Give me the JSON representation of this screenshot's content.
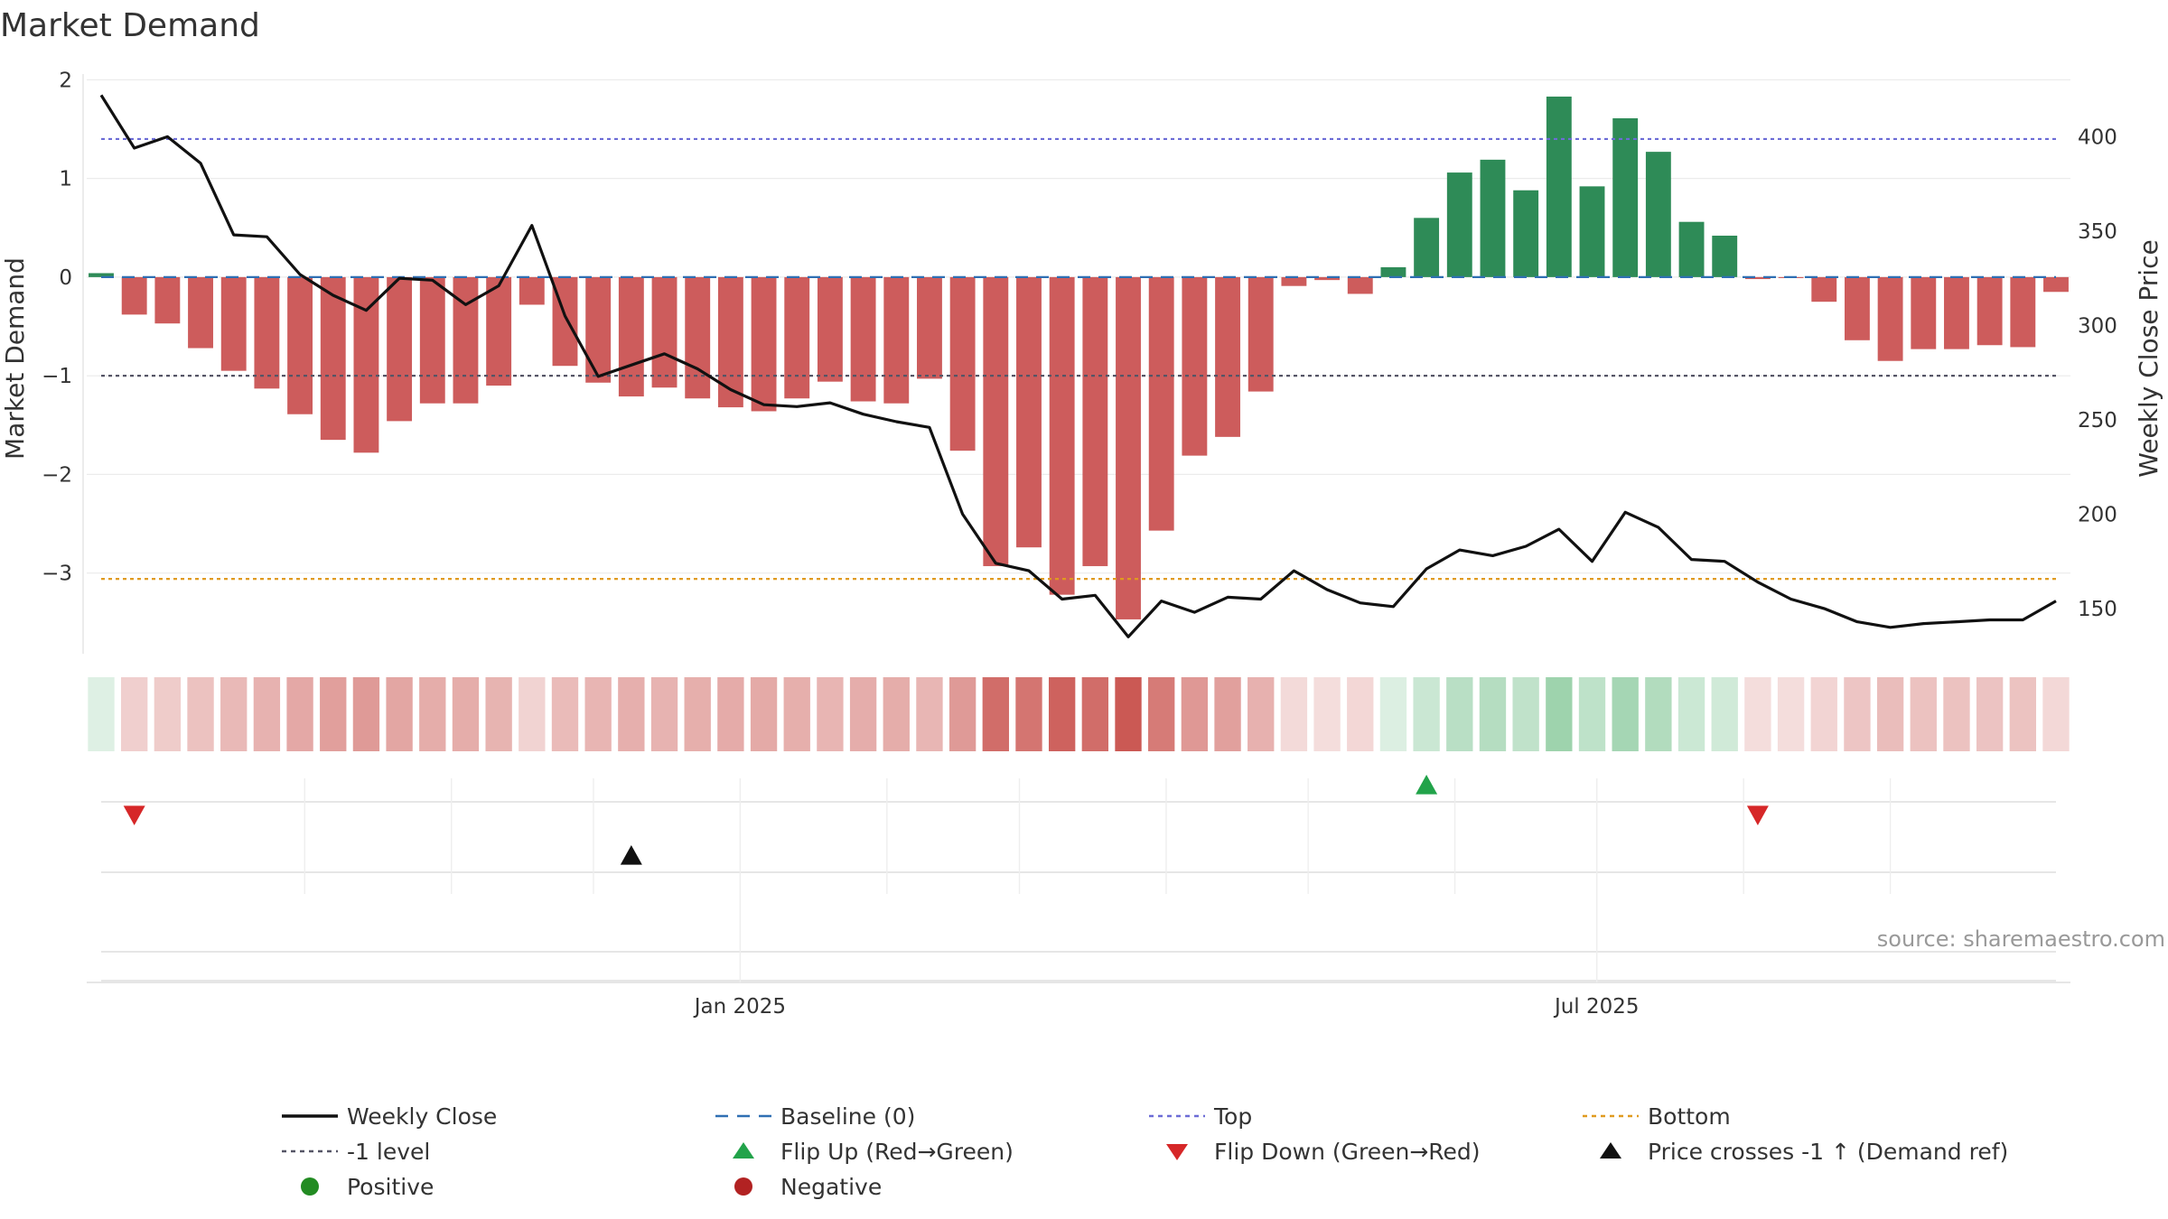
{
  "chart_data": {
    "type": "bar",
    "title": "Market Demand",
    "ylabel": "Market Demand",
    "y2label": "Weekly Close Price",
    "ylim": [
      -3.8,
      2.15
    ],
    "y2lim": [
      127,
      438
    ],
    "y_ticks": [
      2,
      1,
      0,
      -1,
      -2,
      -3
    ],
    "y_tick_labels": [
      "2",
      "1",
      "0",
      "−1",
      "−2",
      "−3"
    ],
    "y2_ticks": [
      400,
      350,
      300,
      250,
      200,
      150
    ],
    "y2_tick_labels": [
      "400",
      "350",
      "300",
      "250",
      "200",
      "150"
    ],
    "x_start": "2024-08-19",
    "x_step_days": 7,
    "x_ticks": [
      {
        "date": "2025-01-01",
        "label": "Jan 2025"
      },
      {
        "date": "2025-07-01",
        "label": "Jul 2025"
      }
    ],
    "demand": [
      0.04,
      -0.38,
      -0.47,
      -0.72,
      -0.95,
      -1.13,
      -1.39,
      -1.65,
      -1.78,
      -1.46,
      -1.28,
      -1.28,
      -1.1,
      -0.28,
      -0.9,
      -1.07,
      -1.21,
      -1.12,
      -1.23,
      -1.32,
      -1.36,
      -1.23,
      -1.06,
      -1.26,
      -1.28,
      -1.03,
      -1.76,
      -2.93,
      -2.74,
      -3.22,
      -2.93,
      -3.47,
      -2.57,
      -1.81,
      -1.62,
      -1.16,
      -0.09,
      -0.03,
      -0.17,
      0.1,
      0.6,
      1.06,
      1.19,
      0.88,
      1.83,
      0.92,
      1.61,
      1.27,
      0.56,
      0.42,
      -0.02,
      -0.01,
      -0.25,
      -0.64,
      -0.85,
      -0.73,
      -0.73,
      -0.69,
      -0.71,
      -0.15
    ],
    "close": [
      422,
      394,
      400,
      386,
      348,
      347,
      327,
      316,
      308,
      325,
      324,
      311,
      321,
      353,
      305,
      273,
      279,
      285,
      277,
      266,
      258,
      257,
      259,
      253,
      249,
      246,
      200,
      174,
      170,
      155,
      157,
      135,
      154,
      148,
      156,
      155,
      170,
      160,
      153,
      151,
      171,
      181,
      178,
      183,
      192,
      175,
      201,
      193,
      176,
      175,
      164,
      155,
      150,
      143,
      140,
      142,
      143,
      144,
      144,
      154
    ],
    "reference_lines": [
      {
        "name": "Top",
        "value": 1.4,
        "color": "#6c6cd6"
      },
      {
        "name": "-1 level",
        "value": -1,
        "color": "#555566"
      },
      {
        "name": "Bottom",
        "value": -3.06,
        "color": "#e09a1f"
      }
    ],
    "flip_up": [
      40
    ],
    "flip_down": [
      1,
      50
    ],
    "price_crosses": [
      16
    ],
    "colors": {
      "positive_bar": "#2e8b57",
      "negative_bar": "#cd5c5c",
      "close_line": "#111111",
      "baseline": "#2f6fb3",
      "flip_up": "#22a34a",
      "flip_down": "#d62728",
      "cross": "#111111",
      "legend_positive": "#228b22",
      "legend_negative": "#b22222"
    },
    "legend": [
      {
        "label": "Weekly Close",
        "marker": "solid-line",
        "color": "#111111"
      },
      {
        "label": "Baseline (0)",
        "marker": "dash-line",
        "color": "#2f6fb3"
      },
      {
        "label": "Top",
        "marker": "dot-line",
        "color": "#6c6cd6"
      },
      {
        "label": "Bottom",
        "marker": "dot-line",
        "color": "#e09a1f"
      },
      {
        "label": "-1 level",
        "marker": "dot-line",
        "color": "#555566"
      },
      {
        "label": "Flip Up (Red→Green)",
        "marker": "triangle-up",
        "color": "#22a34a"
      },
      {
        "label": "Flip Down (Green→Red)",
        "marker": "triangle-down",
        "color": "#d62728"
      },
      {
        "label": "Price crosses -1 ↑ (Demand ref)",
        "marker": "triangle-up",
        "color": "#111111"
      },
      {
        "label": "Positive",
        "marker": "circle",
        "color": "#228b22"
      },
      {
        "label": "Negative",
        "marker": "circle",
        "color": "#b22222"
      }
    ],
    "legend_placement": "bottom",
    "source": "source: sharemaestro.com"
  }
}
